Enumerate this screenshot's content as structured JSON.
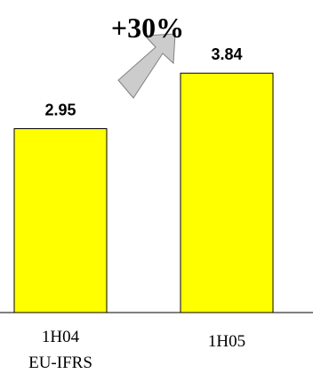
{
  "chart_data": {
    "type": "bar",
    "categories": [
      "1H04",
      "1H05"
    ],
    "category_sublabels": [
      "EU-IFRS",
      ""
    ],
    "values": [
      2.95,
      3.84
    ],
    "value_labels": [
      "2.95",
      "3.84"
    ],
    "annotation": "+30%",
    "ylim": [
      0,
      4.3
    ],
    "grid": false,
    "legend": "none"
  },
  "colors": {
    "bar_fill": "#ffff00",
    "bar_stroke": "#000000",
    "arrow_fill": "#cccccc",
    "arrow_stroke": "#808080"
  },
  "icons": {
    "growth_arrow": "arrow-up-right-icon"
  }
}
